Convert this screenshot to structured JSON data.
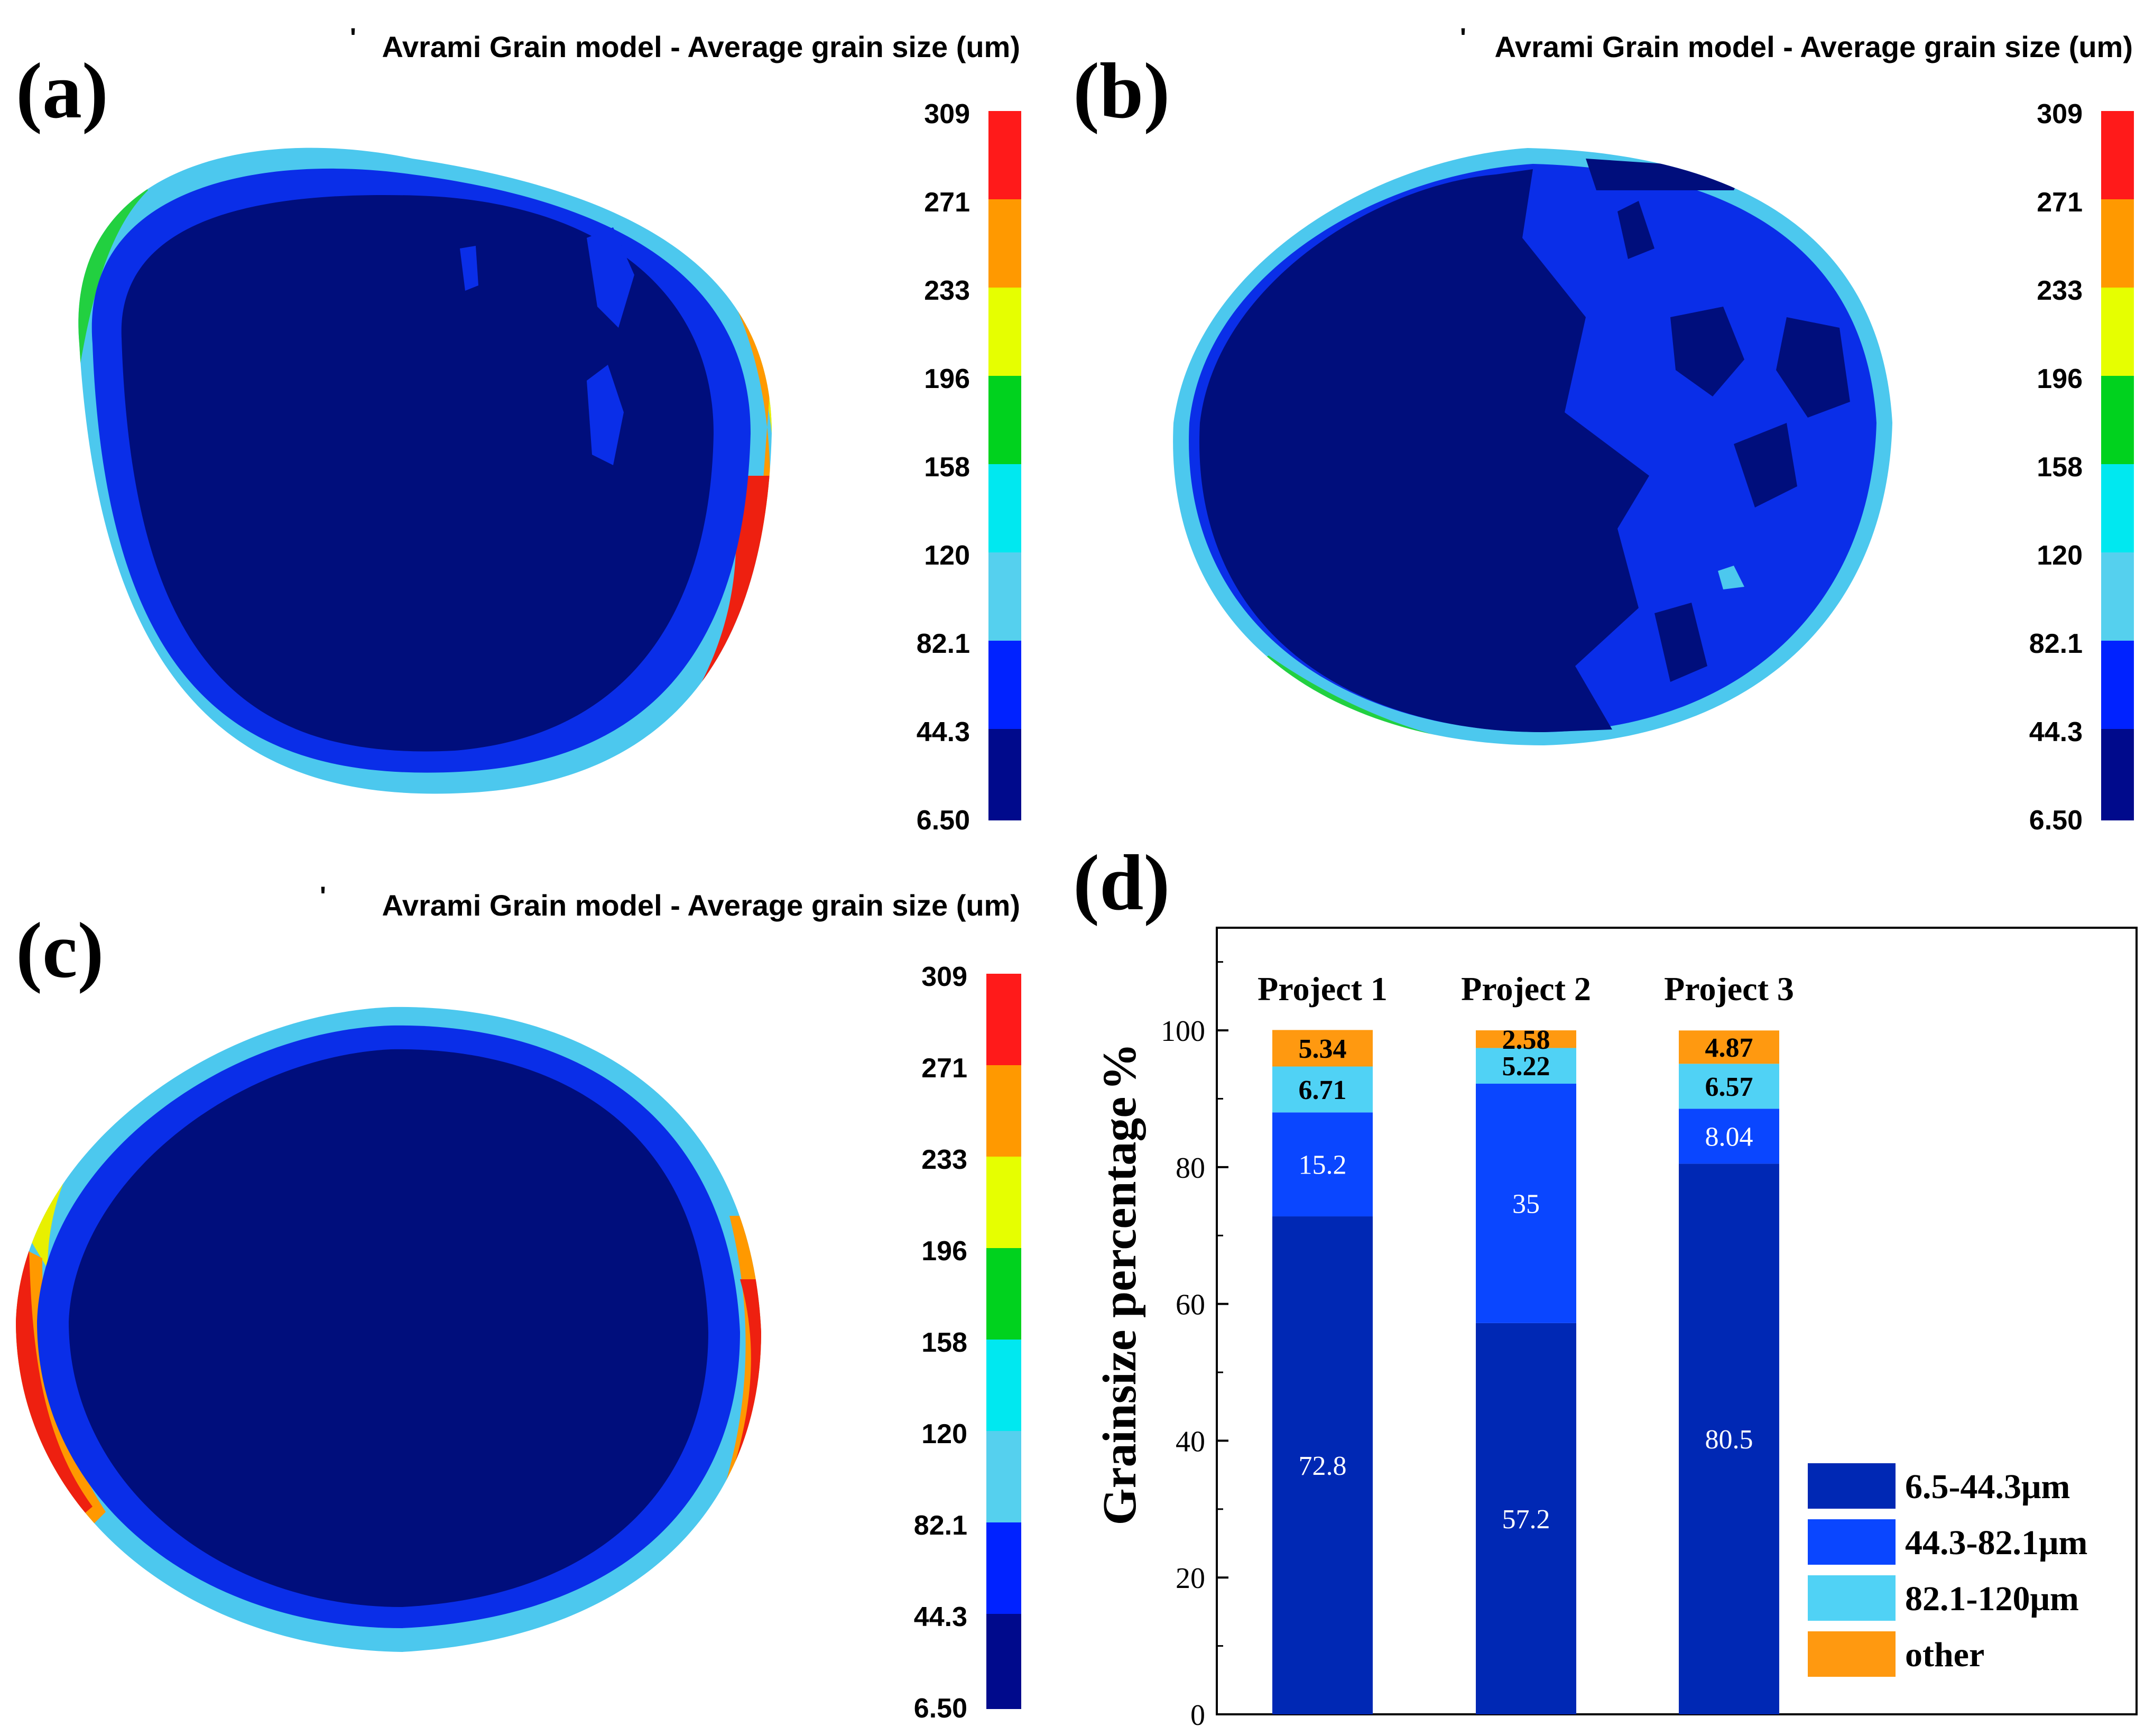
{
  "panels": [
    {
      "label": "(a)",
      "title": "Avrami Grain model - Average grain size (um)",
      "title_mark": "'"
    },
    {
      "label": "(b)",
      "title": "Avrami Grain model - Average grain size (um)",
      "title_mark": "'"
    },
    {
      "label": "(c)",
      "title": "Avrami Grain model - Average grain size (um)",
      "title_mark": "'"
    },
    {
      "label": "(d)"
    }
  ],
  "colorbar": {
    "ticks": [
      "309",
      "271",
      "233",
      "196",
      "158",
      "120",
      "82.1",
      "44.3",
      "6.50"
    ],
    "colors": [
      "#ff1a1a",
      "#ff9900",
      "#e6ff00",
      "#00d21e",
      "#00e8f0",
      "#55d0ee",
      "#0022ff",
      "#000a8c"
    ]
  },
  "map_colors": {
    "dark": "#000e7c",
    "blue": "#0a2ee8",
    "lightblue": "#4cc8ee",
    "cyan": "#22e0f0",
    "green": "#22d040",
    "yellow": "#e8f000",
    "orange": "#ff9900",
    "red": "#ee2010"
  },
  "chart_data": {
    "type": "bar",
    "stacked": true,
    "categories": [
      "Project 1",
      "Project 2",
      "Project 3"
    ],
    "series": [
      {
        "name": "6.5-44.3μm",
        "color": "#0028b4",
        "values": [
          72.8,
          57.2,
          80.5
        ],
        "labels": [
          "72.8",
          "57.2",
          "80.5"
        ]
      },
      {
        "name": "44.3-82.1μm",
        "color": "#0a46ff",
        "values": [
          15.2,
          35,
          8.04
        ],
        "labels": [
          "15.2",
          "35",
          "8.04"
        ]
      },
      {
        "name": "82.1-120μm",
        "color": "#50d2f5",
        "values": [
          6.71,
          5.22,
          6.57
        ],
        "labels": [
          "6.71",
          "5.22",
          "6.57"
        ]
      },
      {
        "name": "other",
        "color": "#ff9910",
        "values": [
          5.34,
          2.58,
          4.87
        ],
        "labels": [
          "5.34",
          "2.58",
          "4.87"
        ]
      }
    ],
    "ylabel": "Grainsize percentage",
    "yunit": "%",
    "ylim": [
      0,
      115
    ],
    "yticks": [
      0,
      20,
      40,
      60,
      80,
      100
    ],
    "legend_position": "bottom-right",
    "grid": false
  }
}
